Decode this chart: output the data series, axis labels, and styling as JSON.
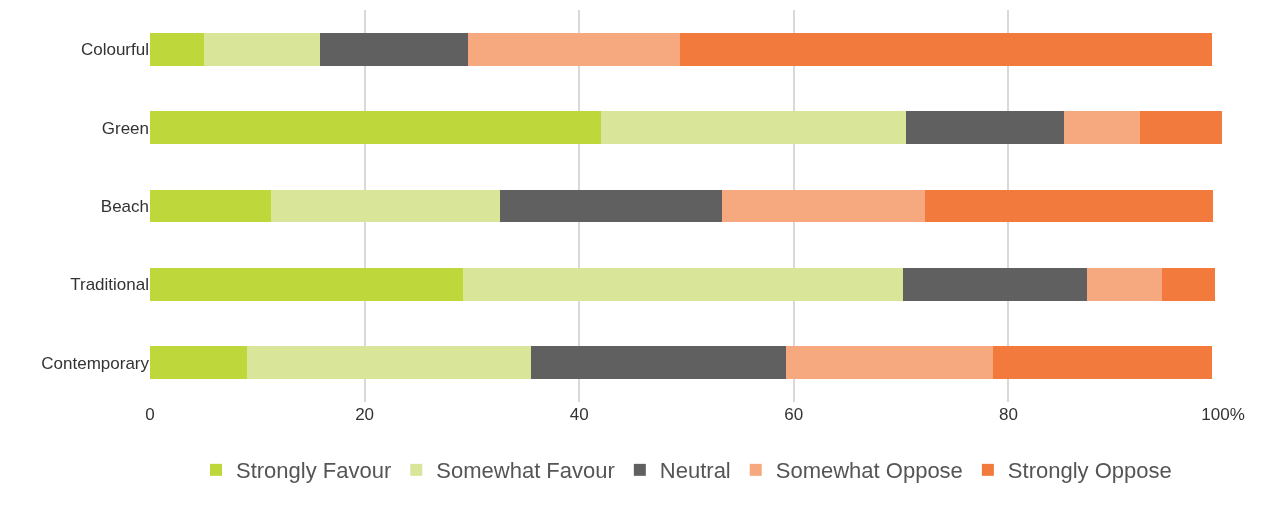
{
  "chart_data": {
    "type": "bar",
    "orientation": "horizontal",
    "stacked": true,
    "categories": [
      "Colourful",
      "Green",
      "Beach",
      "Traditional",
      "Contemporary"
    ],
    "series": [
      {
        "name": "Strongly Favour",
        "color": "#bed73b",
        "values": [
          5.0,
          42.0,
          11.3,
          29.2,
          9.0
        ]
      },
      {
        "name": "Somewhat Favour",
        "color": "#d9e69a",
        "values": [
          10.8,
          28.5,
          21.3,
          41.0,
          26.5
        ]
      },
      {
        "name": "Neutral",
        "color": "#5f605f",
        "values": [
          13.8,
          14.7,
          20.7,
          17.1,
          23.8
        ]
      },
      {
        "name": "Somewhat Oppose",
        "color": "#f6a97e",
        "values": [
          19.8,
          7.1,
          18.9,
          7.0,
          19.3
        ]
      },
      {
        "name": "Strongly Oppose",
        "color": "#f27a3c",
        "values": [
          49.6,
          7.6,
          26.9,
          5.0,
          20.4
        ]
      }
    ],
    "xlim": [
      0,
      100
    ],
    "xticks": [
      0,
      20,
      40,
      60,
      80,
      {
        "value": 100,
        "label": "100%"
      }
    ],
    "grid": "x",
    "legend": "bottom"
  }
}
